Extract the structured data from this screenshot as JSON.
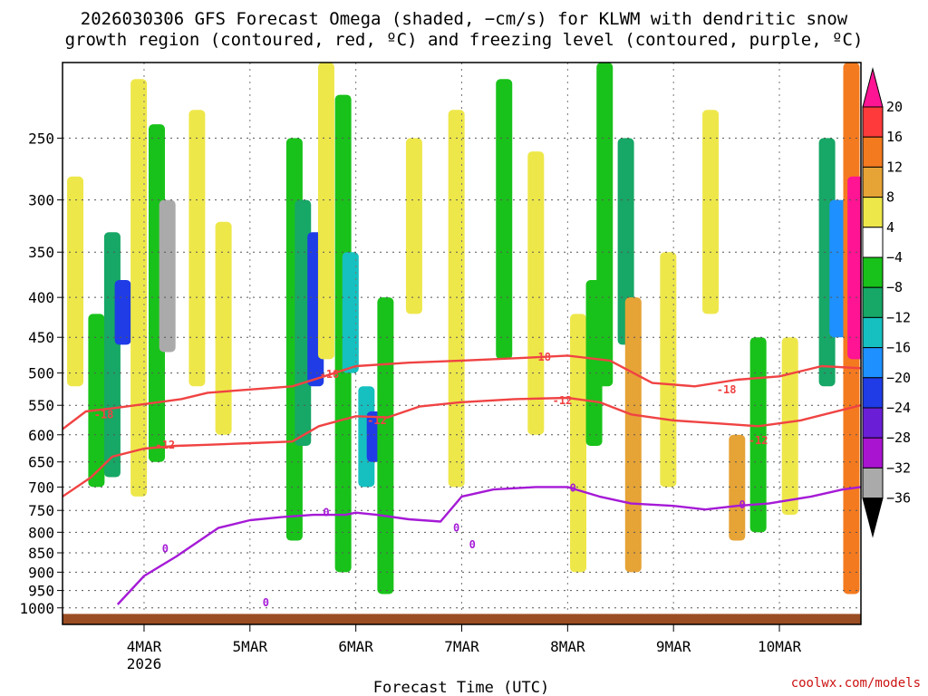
{
  "chart_data": {
    "type": "heatmap",
    "title": [
      "2026030306 GFS Forecast Omega (shaded, −cm/s) for KLWM with dendritic snow",
      "growth region (contoured, red, ºC) and freezing level (contoured, purple, ºC)"
    ],
    "xlabel": "Forecast Time (UTC)",
    "ylabel": "",
    "credit": "coolwx.com/models",
    "x_range_days": [
      -0.77,
      6.77
    ],
    "x_ticks": [
      {
        "day": 0,
        "label": "4MAR",
        "sub": "2026"
      },
      {
        "day": 1,
        "label": "5MAR",
        "sub": ""
      },
      {
        "day": 2,
        "label": "6MAR",
        "sub": ""
      },
      {
        "day": 3,
        "label": "7MAR",
        "sub": ""
      },
      {
        "day": 4,
        "label": "8MAR",
        "sub": ""
      },
      {
        "day": 5,
        "label": "9MAR",
        "sub": ""
      },
      {
        "day": 6,
        "label": "10MAR",
        "sub": ""
      }
    ],
    "y_axis": {
      "scale": "log-pressure",
      "range_hpa": [
        1050,
        200
      ],
      "reversed": true,
      "ticks": [
        250,
        300,
        350,
        400,
        450,
        500,
        550,
        600,
        650,
        700,
        750,
        800,
        850,
        900,
        950,
        1000
      ]
    },
    "colorbar": {
      "levels": [
        20,
        16,
        12,
        8,
        4,
        -4,
        -8,
        -12,
        -16,
        -20,
        -24,
        -28,
        -32,
        -36
      ],
      "colors": [
        "#ff1493",
        "#ff3a3a",
        "#f47a1f",
        "#e6a336",
        "#eee74a",
        "#ffffff",
        "#19c21a",
        "#17a766",
        "#16c0c0",
        "#1e90ff",
        "#1f3ce6",
        "#6a1fd6",
        "#a814d0",
        "#aaaaaa",
        "#000000"
      ]
    },
    "omega_cells": [
      {
        "day": -0.65,
        "p_top": 280,
        "p_bot": 520,
        "v": 4
      },
      {
        "day": -0.45,
        "p_top": 420,
        "p_bot": 700,
        "v": -8
      },
      {
        "day": -0.3,
        "p_top": 330,
        "p_bot": 680,
        "v": -12
      },
      {
        "day": -0.2,
        "p_top": 380,
        "p_bot": 460,
        "v": -24
      },
      {
        "day": -0.05,
        "p_top": 210,
        "p_bot": 720,
        "v": 4
      },
      {
        "day": 0.12,
        "p_top": 240,
        "p_bot": 650,
        "v": -8
      },
      {
        "day": 0.22,
        "p_top": 300,
        "p_bot": 470,
        "v": -36
      },
      {
        "day": 0.5,
        "p_top": 230,
        "p_bot": 520,
        "v": 4
      },
      {
        "day": 0.75,
        "p_top": 320,
        "p_bot": 600,
        "v": 4
      },
      {
        "day": 1.42,
        "p_top": 250,
        "p_bot": 820,
        "v": -8
      },
      {
        "day": 1.5,
        "p_top": 300,
        "p_bot": 620,
        "v": -12
      },
      {
        "day": 1.62,
        "p_top": 330,
        "p_bot": 520,
        "v": -24
      },
      {
        "day": 1.72,
        "p_top": 200,
        "p_bot": 480,
        "v": 4
      },
      {
        "day": 1.88,
        "p_top": 220,
        "p_bot": 900,
        "v": -8
      },
      {
        "day": 1.95,
        "p_top": 350,
        "p_bot": 500,
        "v": -16
      },
      {
        "day": 2.1,
        "p_top": 520,
        "p_bot": 700,
        "v": -16
      },
      {
        "day": 2.18,
        "p_top": 560,
        "p_bot": 650,
        "v": -24
      },
      {
        "day": 2.28,
        "p_top": 400,
        "p_bot": 960,
        "v": -8
      },
      {
        "day": 2.55,
        "p_top": 250,
        "p_bot": 420,
        "v": 4
      },
      {
        "day": 2.95,
        "p_top": 230,
        "p_bot": 700,
        "v": 4
      },
      {
        "day": 3.4,
        "p_top": 210,
        "p_bot": 480,
        "v": -8
      },
      {
        "day": 3.7,
        "p_top": 260,
        "p_bot": 600,
        "v": 4
      },
      {
        "day": 4.1,
        "p_top": 420,
        "p_bot": 900,
        "v": 4
      },
      {
        "day": 4.25,
        "p_top": 380,
        "p_bot": 620,
        "v": -8
      },
      {
        "day": 4.35,
        "p_top": 200,
        "p_bot": 520,
        "v": -8
      },
      {
        "day": 4.55,
        "p_top": 250,
        "p_bot": 460,
        "v": -12
      },
      {
        "day": 4.62,
        "p_top": 400,
        "p_bot": 900,
        "v": 8
      },
      {
        "day": 4.95,
        "p_top": 350,
        "p_bot": 700,
        "v": 4
      },
      {
        "day": 5.35,
        "p_top": 230,
        "p_bot": 420,
        "v": 4
      },
      {
        "day": 5.6,
        "p_top": 600,
        "p_bot": 820,
        "v": 8
      },
      {
        "day": 5.8,
        "p_top": 450,
        "p_bot": 800,
        "v": -8
      },
      {
        "day": 6.1,
        "p_top": 450,
        "p_bot": 760,
        "v": 4
      },
      {
        "day": 6.45,
        "p_top": 250,
        "p_bot": 520,
        "v": -12
      },
      {
        "day": 6.55,
        "p_top": 300,
        "p_bot": 450,
        "v": -20
      },
      {
        "day": 6.68,
        "p_top": 200,
        "p_bot": 960,
        "v": 12
      },
      {
        "day": 6.72,
        "p_top": 280,
        "p_bot": 480,
        "v": 20
      }
    ],
    "terrain_pressure_hpa": 1018,
    "contour_series": [
      {
        "name": "-18",
        "color": "#f04343",
        "x": [
          -0.77,
          -0.55,
          -0.3,
          0.0,
          0.35,
          0.6,
          1.0,
          1.4,
          1.7,
          2.0,
          2.5,
          3.0,
          3.6,
          4.0,
          4.4,
          4.8,
          5.2,
          5.6,
          6.0,
          6.4,
          6.77
        ],
        "p": [
          590,
          560,
          555,
          548,
          540,
          530,
          525,
          520,
          505,
          490,
          485,
          482,
          478,
          475,
          482,
          515,
          520,
          510,
          505,
          490,
          493
        ]
      },
      {
        "name": "-12",
        "color": "#f04343",
        "x": [
          -0.77,
          -0.5,
          -0.3,
          0.0,
          0.3,
          0.6,
          1.0,
          1.4,
          1.65,
          2.0,
          2.3,
          2.6,
          3.0,
          3.5,
          4.0,
          4.3,
          4.6,
          5.0,
          5.4,
          5.8,
          6.2,
          6.77
        ],
        "p": [
          720,
          680,
          640,
          625,
          620,
          618,
          615,
          612,
          585,
          568,
          570,
          552,
          545,
          540,
          538,
          545,
          565,
          575,
          580,
          585,
          575,
          550
        ]
      },
      {
        "name": "0",
        "color": "#a51ad6",
        "x": [
          -0.25,
          0.0,
          0.3,
          0.7,
          1.0,
          1.3,
          1.6,
          1.9,
          2.0,
          2.2,
          2.5,
          2.8,
          3.0,
          3.3,
          3.7,
          4.0,
          4.3,
          4.6,
          5.0,
          5.3,
          5.6,
          5.9,
          6.3,
          6.6,
          6.77
        ],
        "p": [
          990,
          910,
          860,
          790,
          772,
          765,
          760,
          760,
          755,
          760,
          770,
          775,
          720,
          705,
          700,
          700,
          720,
          735,
          740,
          748,
          740,
          735,
          720,
          705,
          700
        ]
      }
    ],
    "contour_labels": [
      {
        "text": "-18",
        "day": -0.38,
        "p": 565,
        "color": "#f04343"
      },
      {
        "text": "-12",
        "day": 0.2,
        "p": 618,
        "color": "#f04343"
      },
      {
        "text": "-18",
        "day": 1.75,
        "p": 502,
        "color": "#f04343"
      },
      {
        "text": "-12",
        "day": 2.2,
        "p": 575,
        "color": "#f04343"
      },
      {
        "text": "-18",
        "day": 3.75,
        "p": 477,
        "color": "#f04343"
      },
      {
        "text": "-12",
        "day": 3.95,
        "p": 542,
        "color": "#f04343"
      },
      {
        "text": "-18",
        "day": 5.5,
        "p": 525,
        "color": "#f04343"
      },
      {
        "text": "-12",
        "day": 5.8,
        "p": 610,
        "color": "#f04343"
      },
      {
        "text": "0",
        "day": 0.2,
        "p": 840,
        "color": "#a51ad6"
      },
      {
        "text": "0",
        "day": 1.72,
        "p": 755,
        "color": "#a51ad6"
      },
      {
        "text": "0",
        "day": 1.15,
        "p": 985,
        "color": "#a51ad6"
      },
      {
        "text": "0",
        "day": 2.95,
        "p": 790,
        "color": "#a51ad6"
      },
      {
        "text": "0",
        "day": 3.1,
        "p": 830,
        "color": "#a51ad6"
      },
      {
        "text": "0",
        "day": 4.05,
        "p": 702,
        "color": "#a51ad6"
      },
      {
        "text": "0",
        "day": 5.65,
        "p": 738,
        "color": "#a51ad6"
      }
    ],
    "legend": "right colorbar"
  }
}
